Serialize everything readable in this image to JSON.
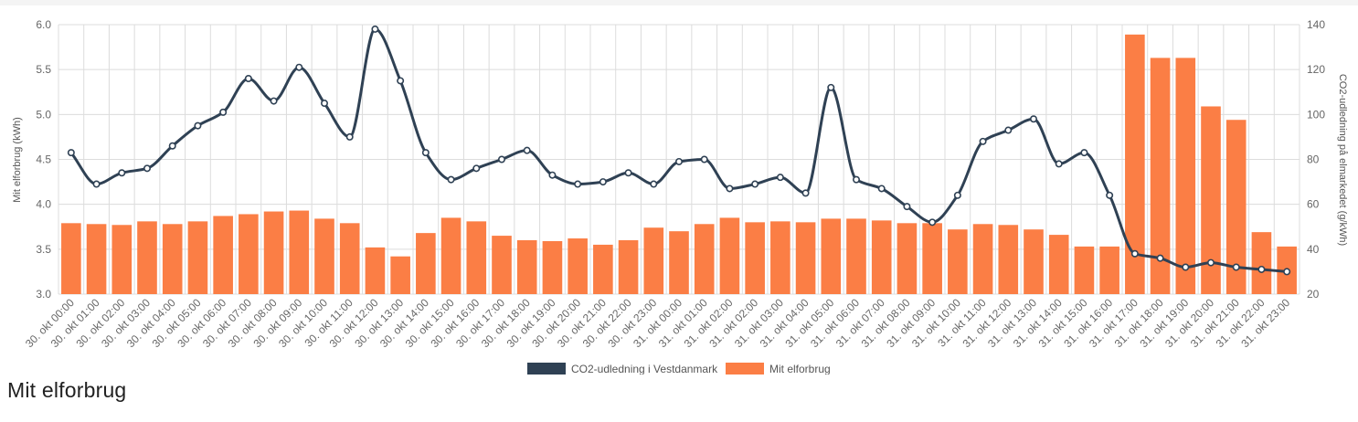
{
  "page": {
    "heading": "Mit elforbrug"
  },
  "colors": {
    "co2_line": "#2f4154",
    "consumption_bar": "#fb7e45",
    "grid": "#dcdcdc"
  },
  "chart_data": {
    "type": "bar",
    "title": "",
    "xlabel": "",
    "categories": [
      "30. okt 00:00",
      "30. okt 01:00",
      "30. okt 02:00",
      "30. okt 03:00",
      "30. okt 04:00",
      "30. okt 05:00",
      "30. okt 06:00",
      "30. okt 07:00",
      "30. okt 08:00",
      "30. okt 09:00",
      "30. okt 10:00",
      "30. okt 11:00",
      "30. okt 12:00",
      "30. okt 13:00",
      "30. okt 14:00",
      "30. okt 15:00",
      "30. okt 16:00",
      "30. okt 17:00",
      "30. okt 18:00",
      "30. okt 19:00",
      "30. okt 20:00",
      "30. okt 21:00",
      "30. okt 22:00",
      "30. okt 23:00",
      "31. okt 00:00",
      "31. okt 01:00",
      "31. okt 02:00",
      "31. okt 02:00",
      "31. okt 03:00",
      "31. okt 04:00",
      "31. okt 05:00",
      "31. okt 06:00",
      "31. okt 07:00",
      "31. okt 08:00",
      "31. okt 09:00",
      "31. okt 10:00",
      "31. okt 11:00",
      "31. okt 12:00",
      "31. okt 13:00",
      "31. okt 14:00",
      "31. okt 15:00",
      "31. okt 16:00",
      "31. okt 17:00",
      "31. okt 18:00",
      "31. okt 19:00",
      "31. okt 20:00",
      "31. okt 21:00",
      "31. okt 22:00",
      "31. okt 23:00"
    ],
    "y_left": {
      "label": "Mit elforbrug (kWh)",
      "range": [
        3.0,
        6.0
      ],
      "ticks": [
        "3.0",
        "3.5",
        "4.0",
        "4.5",
        "5.0",
        "5.5",
        "6.0"
      ]
    },
    "y_right": {
      "label": "CO2-udledning på elmarkedet (g/kWh)",
      "range": [
        20,
        140
      ],
      "ticks": [
        "20",
        "40",
        "60",
        "80",
        "100",
        "120",
        "140"
      ]
    },
    "grid": true,
    "legend_position": "bottom",
    "series": [
      {
        "name": "CO2-udledning i Vestdanmark",
        "type": "line",
        "axis": "right",
        "values": [
          83,
          69,
          74,
          76,
          86,
          95,
          101,
          116,
          106,
          121,
          105,
          90,
          138,
          115,
          83,
          71,
          76,
          80,
          84,
          73,
          69,
          70,
          74,
          69,
          79,
          80,
          67,
          69,
          72,
          65,
          112,
          71,
          67,
          59,
          52,
          64,
          88,
          93,
          98,
          78,
          83,
          64,
          38,
          36,
          32,
          34,
          32,
          31,
          30
        ]
      },
      {
        "name": "Mit elforbrug",
        "type": "bar",
        "axis": "left",
        "values": [
          3.79,
          3.78,
          3.77,
          3.81,
          3.78,
          3.81,
          3.87,
          3.89,
          3.92,
          3.93,
          3.84,
          3.79,
          3.52,
          3.42,
          3.68,
          3.85,
          3.81,
          3.65,
          3.6,
          3.59,
          3.62,
          3.55,
          3.6,
          3.74,
          3.7,
          3.78,
          3.85,
          3.8,
          3.81,
          3.8,
          3.84,
          3.84,
          3.82,
          3.79,
          3.79,
          3.72,
          3.78,
          3.77,
          3.72,
          3.66,
          3.53,
          3.53,
          5.89,
          5.63,
          5.63,
          5.09,
          4.94,
          3.69,
          3.53
        ]
      }
    ]
  }
}
